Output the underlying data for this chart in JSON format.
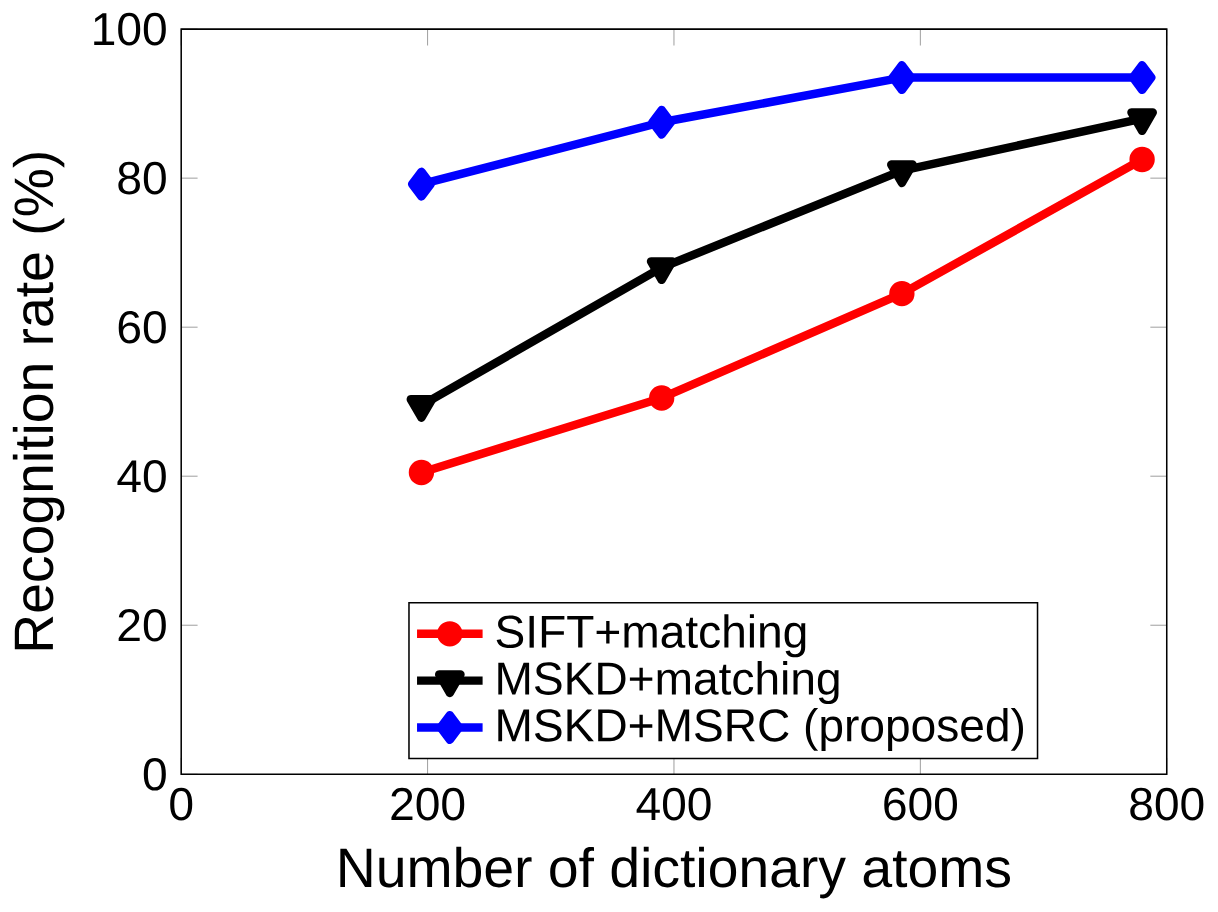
{
  "chart_data": {
    "type": "line",
    "xlabel": "Number of dictionary atoms",
    "ylabel": "Recognition rate (%)",
    "x": [
      195,
      390,
      585,
      780
    ],
    "series": [
      {
        "name": "SIFT+matching",
        "color": "#ff0000",
        "marker": "circle",
        "values": [
          40.5,
          50.5,
          64.5,
          82.5
        ]
      },
      {
        "name": "MSKD+matching",
        "color": "#000000",
        "marker": "triangle",
        "values": [
          49.5,
          68,
          81,
          88
        ]
      },
      {
        "name": "MSKD+MSRC (proposed)",
        "color": "#0000ff",
        "marker": "diamond",
        "values": [
          79.2,
          87.5,
          93.5,
          93.5
        ]
      }
    ],
    "xlim": [
      0,
      800
    ],
    "xticks": [
      0,
      200,
      400,
      600,
      800
    ],
    "ylim": [
      0,
      100
    ],
    "yticks": [
      0,
      20,
      40,
      60,
      80,
      100
    ],
    "grid": false,
    "legend": "bottom",
    "line_style": "solid"
  }
}
